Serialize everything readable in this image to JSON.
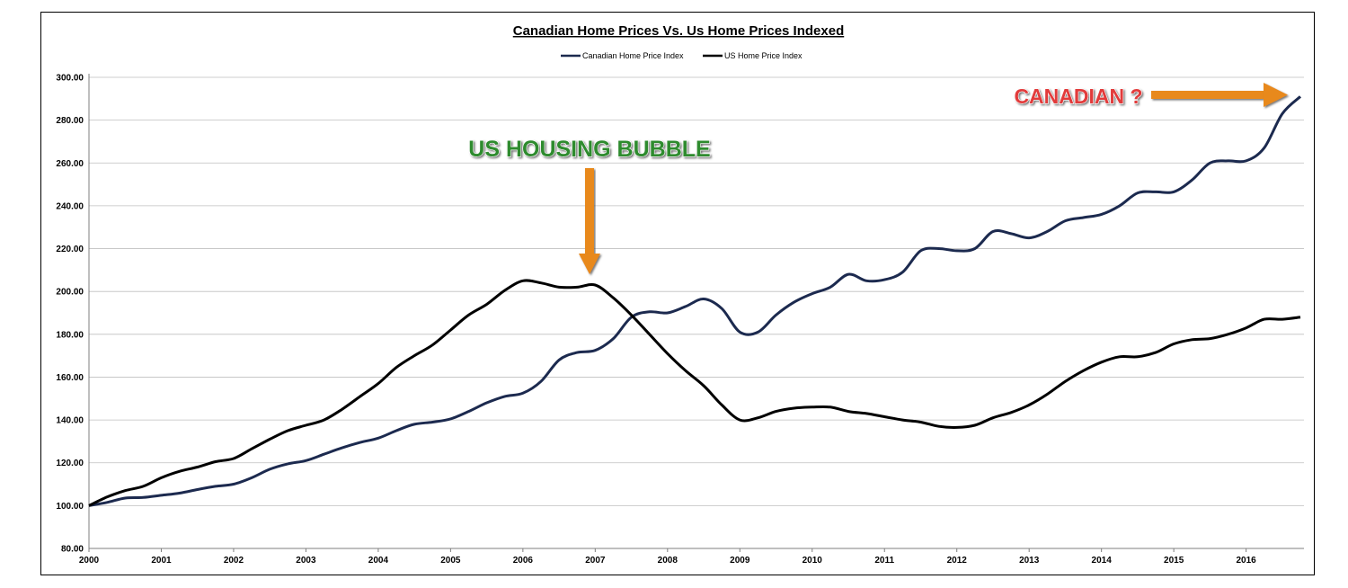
{
  "chart_data": {
    "type": "line",
    "title": "Canadian Home Prices Vs. Us Home Prices Indexed",
    "xlabel": "",
    "ylabel": "",
    "xlim": [
      2000,
      2016.8
    ],
    "ylim": [
      80,
      300
    ],
    "y_ticks": [
      80,
      100,
      120,
      140,
      160,
      180,
      200,
      220,
      240,
      260,
      280,
      300
    ],
    "y_tick_labels": [
      "80.00",
      "100.00",
      "120.00",
      "140.00",
      "160.00",
      "180.00",
      "200.00",
      "220.00",
      "240.00",
      "260.00",
      "280.00",
      "300.00"
    ],
    "x_ticks": [
      2000,
      2001,
      2002,
      2003,
      2004,
      2005,
      2006,
      2007,
      2008,
      2009,
      2010,
      2011,
      2012,
      2013,
      2014,
      2015,
      2016
    ],
    "x_tick_labels": [
      "2000",
      "2001",
      "2002",
      "2003",
      "2004",
      "2005",
      "2006",
      "2007",
      "2008",
      "2009",
      "2010",
      "2011",
      "2012",
      "2013",
      "2014",
      "2015",
      "2016"
    ],
    "grid": "horizontal",
    "legend_position": "top-center",
    "series": [
      {
        "name": "Canadian Home Price Index",
        "color": "#1c2a4f",
        "x": [
          2000,
          2000.25,
          2000.5,
          2000.75,
          2001,
          2001.25,
          2001.5,
          2001.75,
          2002,
          2002.25,
          2002.5,
          2002.75,
          2003,
          2003.25,
          2003.5,
          2003.75,
          2004,
          2004.25,
          2004.5,
          2004.75,
          2005,
          2005.25,
          2005.5,
          2005.75,
          2006,
          2006.25,
          2006.5,
          2006.75,
          2007,
          2007.25,
          2007.5,
          2007.75,
          2008,
          2008.25,
          2008.5,
          2008.75,
          2009,
          2009.25,
          2009.5,
          2009.75,
          2010,
          2010.25,
          2010.5,
          2010.75,
          2011,
          2011.25,
          2011.5,
          2011.75,
          2012,
          2012.25,
          2012.5,
          2012.75,
          2013,
          2013.25,
          2013.5,
          2013.75,
          2014,
          2014.25,
          2014.5,
          2014.75,
          2015,
          2015.25,
          2015.5,
          2015.75,
          2016,
          2016.25,
          2016.5,
          2016.75
        ],
        "y": [
          100,
          101.5,
          103.5,
          103.8,
          104.8,
          105.8,
          107.5,
          109,
          110,
          113,
          117,
          119.5,
          121,
          124,
          127,
          129.5,
          131.5,
          135,
          138,
          139,
          140.5,
          144,
          148,
          151,
          152.5,
          158,
          168,
          171.5,
          172.5,
          178,
          188,
          190.5,
          190,
          193,
          196.5,
          192,
          181,
          181,
          189,
          195,
          199,
          202,
          208,
          205,
          205.5,
          209,
          219,
          220,
          219,
          220,
          228,
          227,
          225,
          228,
          233,
          234.5,
          236,
          240,
          246,
          246.5,
          246.5,
          252,
          260,
          261,
          261,
          267,
          283,
          291
        ]
      },
      {
        "name": "US Home Price Index",
        "color": "#000000",
        "x": [
          2000,
          2000.25,
          2000.5,
          2000.75,
          2001,
          2001.25,
          2001.5,
          2001.75,
          2002,
          2002.25,
          2002.5,
          2002.75,
          2003,
          2003.25,
          2003.5,
          2003.75,
          2004,
          2004.25,
          2004.5,
          2004.75,
          2005,
          2005.25,
          2005.5,
          2005.75,
          2006,
          2006.25,
          2006.5,
          2006.75,
          2007,
          2007.25,
          2007.5,
          2007.75,
          2008,
          2008.25,
          2008.5,
          2008.75,
          2009,
          2009.25,
          2009.5,
          2009.75,
          2010,
          2010.25,
          2010.5,
          2010.75,
          2011,
          2011.25,
          2011.5,
          2011.75,
          2012,
          2012.25,
          2012.5,
          2012.75,
          2013,
          2013.25,
          2013.5,
          2013.75,
          2014,
          2014.25,
          2014.5,
          2014.75,
          2015,
          2015.25,
          2015.5,
          2015.75,
          2016,
          2016.25,
          2016.5,
          2016.75
        ],
        "y": [
          100,
          104,
          107,
          109,
          113,
          116,
          118,
          120.5,
          122,
          126.5,
          131,
          135,
          137.5,
          140,
          145,
          151,
          157,
          164.5,
          170,
          175,
          182,
          189,
          194,
          200.5,
          205,
          204,
          202,
          202,
          203,
          197,
          189,
          180,
          171,
          163,
          156,
          147,
          140,
          141,
          144,
          145.5,
          146,
          146,
          144,
          143,
          141.5,
          140,
          139,
          137,
          136.5,
          137.5,
          141,
          143.5,
          147,
          152,
          158,
          163,
          167,
          169.5,
          169.5,
          171.5,
          175.5,
          177.5,
          178,
          180,
          183,
          187,
          187,
          188
        ]
      }
    ],
    "annotations": [
      {
        "text": "US HOUSING BUBBLE",
        "color": "#2e8b2e",
        "arrow_color": "#e8891a",
        "arrow_direction": "down"
      },
      {
        "text": "CANADIAN ?",
        "color": "#e23a3a",
        "arrow_color": "#e8891a",
        "arrow_direction": "right"
      }
    ]
  }
}
